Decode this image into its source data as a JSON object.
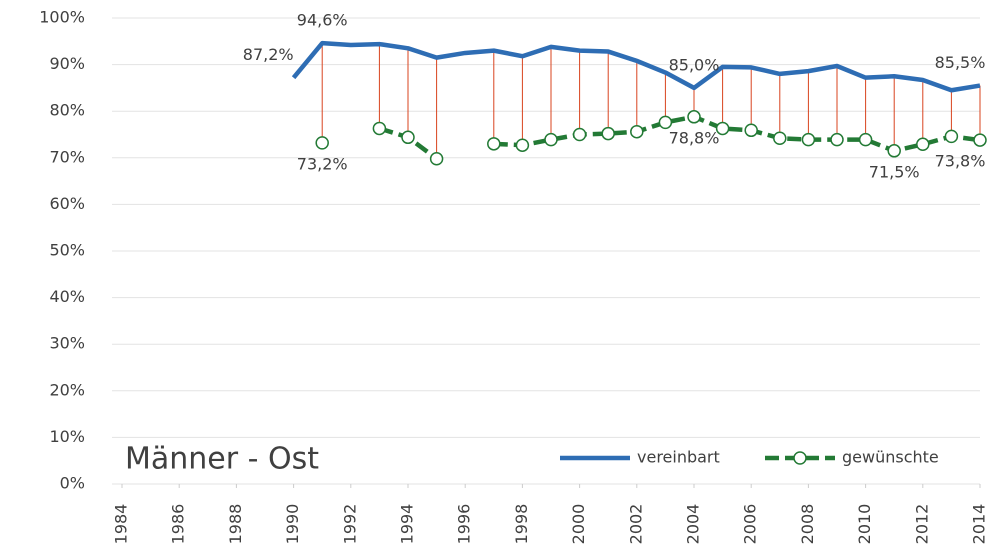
{
  "chart_data": {
    "type": "line",
    "annotation": "Männer - Ost",
    "x": [
      1990,
      1991,
      1992,
      1993,
      1994,
      1995,
      1996,
      1997,
      1998,
      1999,
      2000,
      2001,
      2002,
      2003,
      2004,
      2005,
      2006,
      2007,
      2008,
      2009,
      2010,
      2011,
      2012,
      2013,
      2014
    ],
    "series": [
      {
        "name": "vereinbart",
        "color": "#2e6db4",
        "line_style": "solid",
        "values": [
          87.2,
          94.6,
          94.2,
          94.4,
          93.5,
          91.5,
          92.5,
          93.0,
          91.8,
          93.8,
          93.0,
          92.8,
          90.8,
          88.3,
          85.0,
          89.5,
          89.4,
          88.0,
          88.6,
          89.7,
          87.2,
          87.5,
          86.7,
          84.5,
          85.5
        ],
        "value_labels": [
          "87,2%",
          "94,6%",
          null,
          null,
          null,
          null,
          null,
          null,
          null,
          null,
          null,
          null,
          null,
          null,
          "85,0%",
          null,
          null,
          null,
          null,
          null,
          null,
          null,
          null,
          null,
          "85,5%"
        ]
      },
      {
        "name": "gewünschte",
        "color": "#237a35",
        "line_style": "dashed",
        "marker": "open-circle",
        "values": [
          null,
          73.2,
          null,
          76.3,
          74.4,
          69.8,
          null,
          73.0,
          72.7,
          73.9,
          75.0,
          75.2,
          75.6,
          77.6,
          78.8,
          76.3,
          75.9,
          74.2,
          73.9,
          73.9,
          73.9,
          71.5,
          72.9,
          74.6,
          73.8
        ],
        "value_labels": [
          null,
          "73,2%",
          null,
          null,
          null,
          null,
          null,
          null,
          null,
          null,
          null,
          null,
          null,
          null,
          "78,8%",
          null,
          null,
          null,
          null,
          null,
          null,
          "71,5%",
          null,
          null,
          "73,8%"
        ]
      }
    ],
    "drop_lines": {
      "color": "#d9431e"
    },
    "xlim": [
      1984,
      2014
    ],
    "xticks": [
      1984,
      1986,
      1988,
      1990,
      1992,
      1994,
      1996,
      1998,
      2000,
      2002,
      2004,
      2006,
      2008,
      2010,
      2012,
      2014
    ],
    "ylim": [
      0,
      100
    ],
    "yticks": [
      {
        "value": 0,
        "label": "0%"
      },
      {
        "value": 10,
        "label": "10%"
      },
      {
        "value": 20,
        "label": "20%"
      },
      {
        "value": 30,
        "label": "30%"
      },
      {
        "value": 40,
        "label": "40%"
      },
      {
        "value": 50,
        "label": "50%"
      },
      {
        "value": 60,
        "label": "60%"
      },
      {
        "value": 70,
        "label": "70%"
      },
      {
        "value": 80,
        "label": "80%"
      },
      {
        "value": 90,
        "label": "90%"
      },
      {
        "value": 100,
        "label": "100%"
      }
    ],
    "grid": true,
    "legend": "bottom-right"
  }
}
